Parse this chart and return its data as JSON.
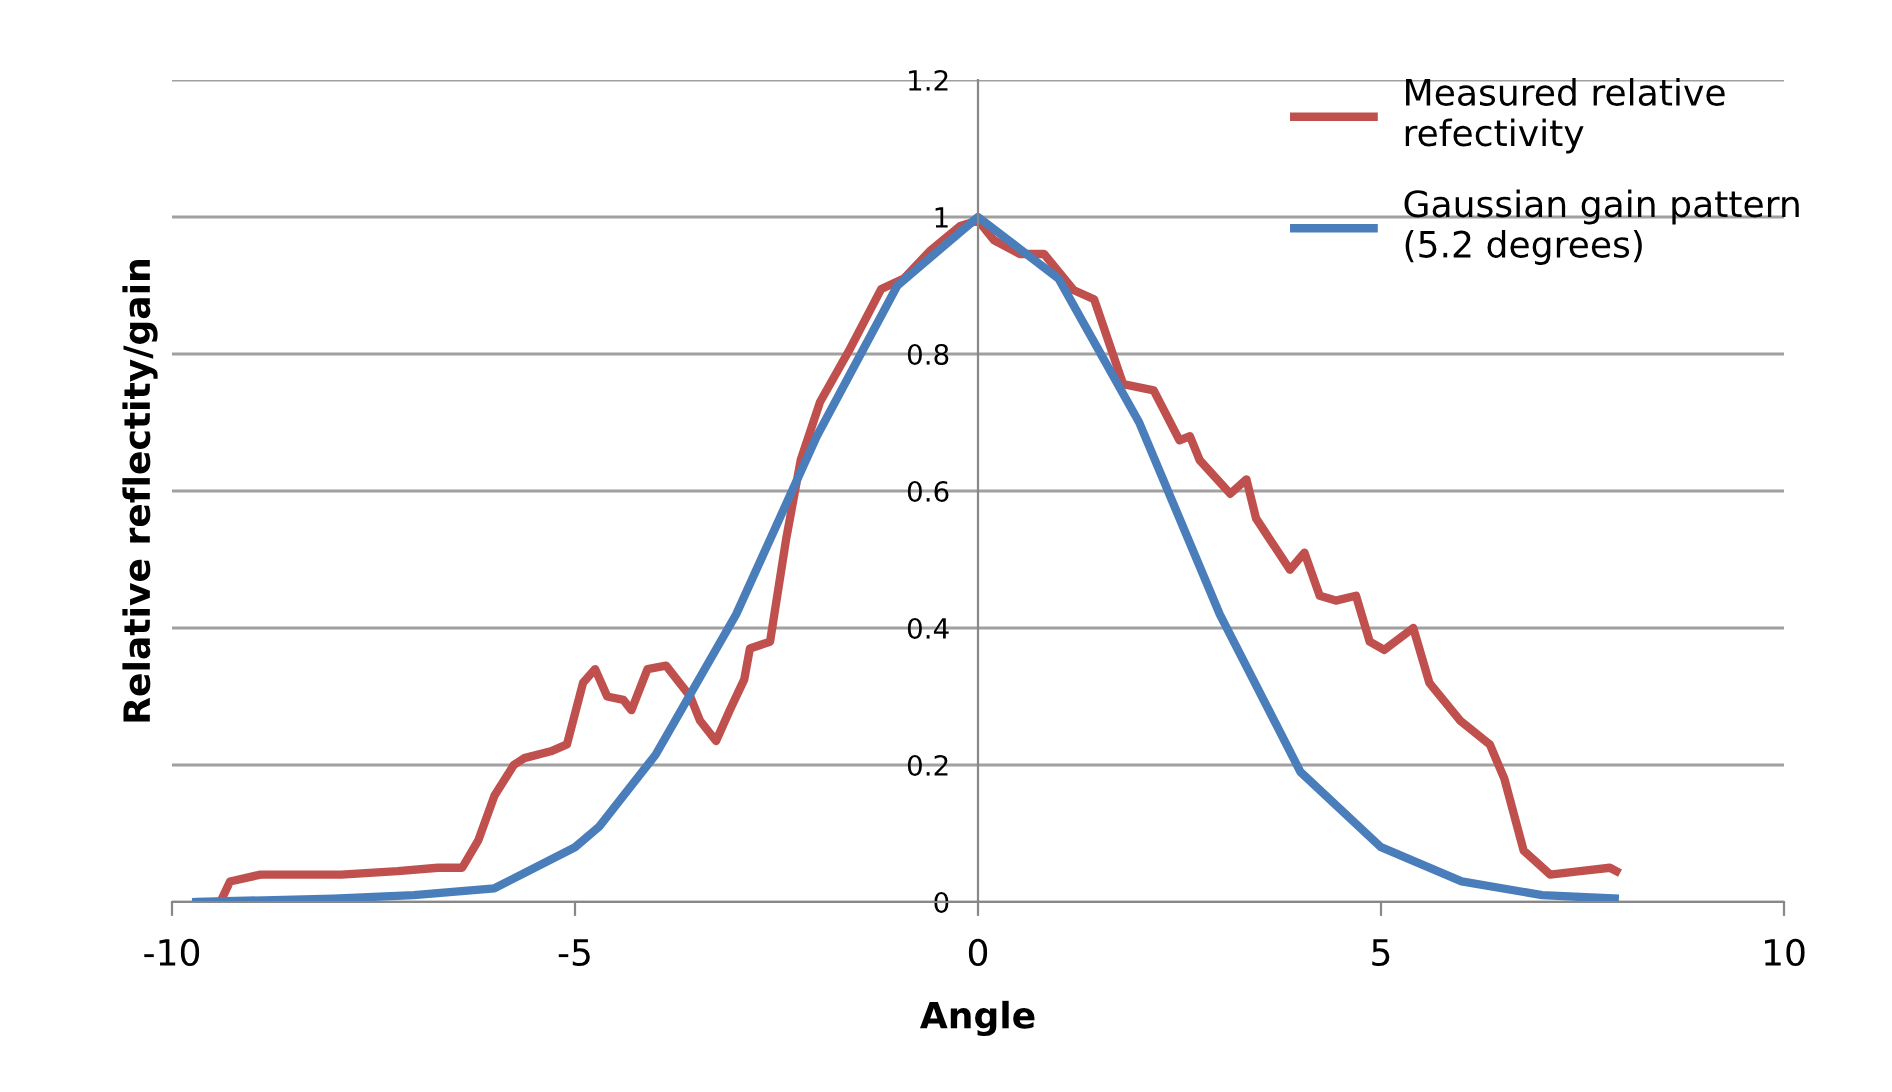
{
  "chart_data": {
    "type": "line",
    "xlabel": "Angle",
    "ylabel": "Relative reflectity/gain",
    "xlim": [
      -10,
      10
    ],
    "xticks": [
      -10,
      -5,
      0,
      5,
      10
    ],
    "ylim": [
      0,
      1.2
    ],
    "yticks": [
      0,
      0.2,
      0.4,
      0.6,
      0.8,
      1,
      1.2
    ],
    "grid": "y",
    "legend": "top right",
    "marker": "none",
    "line_style": "solid",
    "series": [
      {
        "name": "Measured relative\nrefectivity",
        "color": "#c0504d",
        "x": [
          -9.4,
          -9.28,
          -8.9,
          -8.4,
          -7.9,
          -7.2,
          -6.7,
          -6.4,
          -6.2,
          -6.0,
          -5.76,
          -5.63,
          -5.3,
          -5.1,
          -4.9,
          -4.75,
          -4.6,
          -4.4,
          -4.3,
          -4.1,
          -3.87,
          -3.57,
          -3.45,
          -3.25,
          -3.08,
          -2.9,
          -2.83,
          -2.58,
          -2.38,
          -2.2,
          -1.96,
          -1.6,
          -1.2,
          -0.92,
          -0.6,
          -0.22,
          0,
          0.2,
          0.52,
          0.82,
          1.19,
          1.44,
          1.8,
          2.18,
          2.5,
          2.63,
          2.75,
          3.13,
          3.33,
          3.45,
          3.87,
          4.05,
          4.24,
          4.44,
          4.69,
          4.86,
          5.04,
          5.4,
          5.6,
          5.98,
          6.35,
          6.53,
          6.77,
          7.1,
          7.47,
          7.84,
          7.92
        ],
        "values": [
          0,
          0.03,
          0.04,
          0.04,
          0.04,
          0.045,
          0.05,
          0.05,
          0.09,
          0.155,
          0.2,
          0.21,
          0.22,
          0.23,
          0.32,
          0.34,
          0.3,
          0.295,
          0.28,
          0.34,
          0.345,
          0.3,
          0.265,
          0.235,
          0.28,
          0.325,
          0.37,
          0.38,
          0.53,
          0.645,
          0.73,
          0.805,
          0.895,
          0.91,
          0.95,
          0.987,
          0.995,
          0.966,
          0.946,
          0.946,
          0.893,
          0.88,
          0.756,
          0.747,
          0.674,
          0.68,
          0.645,
          0.596,
          0.617,
          0.56,
          0.485,
          0.51,
          0.447,
          0.44,
          0.447,
          0.38,
          0.368,
          0.4,
          0.32,
          0.265,
          0.23,
          0.18,
          0.075,
          0.04,
          0.045,
          0.05,
          0.045
        ]
      },
      {
        "name": "Gaussian gain pattern\n(5.2 degrees)",
        "color": "#4a7ebb",
        "x": [
          -9.7,
          -8,
          -7,
          -6,
          -5,
          -4.7,
          -4,
          -3,
          -2,
          -1,
          0,
          1,
          2,
          3,
          4,
          5,
          6,
          7,
          7.9
        ],
        "values": [
          0,
          0.005,
          0.01,
          0.02,
          0.08,
          0.11,
          0.215,
          0.42,
          0.68,
          0.9,
          1,
          0.91,
          0.7,
          0.42,
          0.19,
          0.08,
          0.03,
          0.01,
          0.005
        ]
      }
    ]
  }
}
